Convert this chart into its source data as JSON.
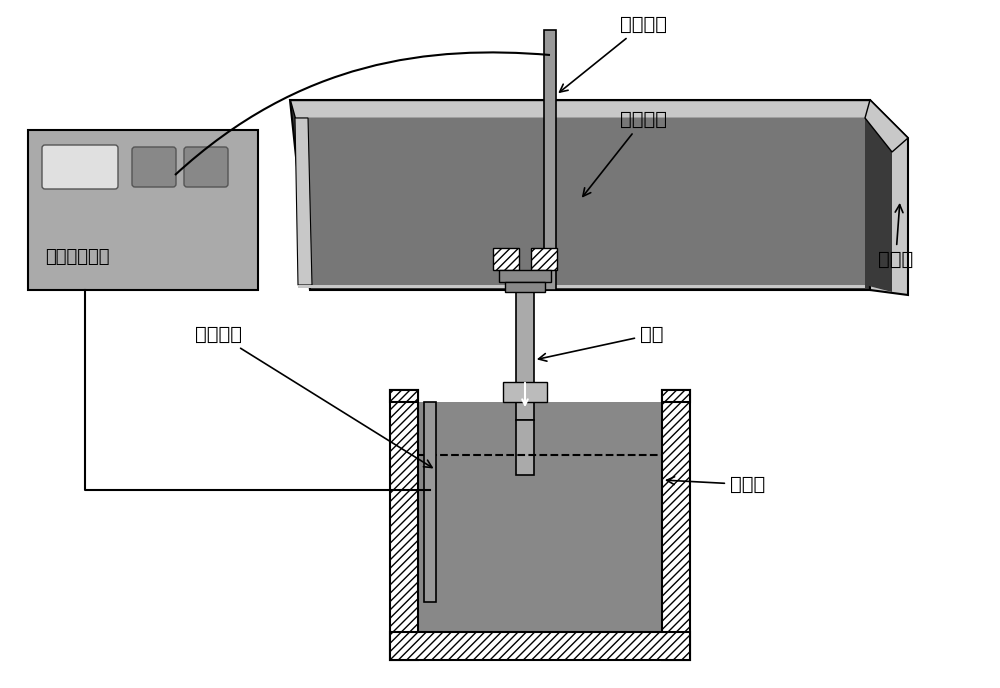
{
  "bg_color": "#ffffff",
  "labels": {
    "pure_iron_electrode_top": "纯铁电极",
    "rare_earth_steel": "稀土钢液",
    "tundish": "中间包",
    "pure_iron_electrode_bottom": "纯铁电极",
    "nozzle": "水口",
    "crystallizer": "结晶器",
    "pulse_power": "脉冲电流电源"
  },
  "colors": {
    "outer_dark": "#3a3a3a",
    "inner_steel": "#777777",
    "wall_light": "#c8c8c8",
    "wall_mid": "#aaaaaa",
    "box_bg": "#aaaaaa",
    "btn_light": "#e0e0e0",
    "btn_dark": "#888888",
    "electrode": "#999999",
    "nozzle_gray": "#aaaaaa",
    "crystallizer_inner": "#888888",
    "hatch_face": "#ffffff",
    "black": "#000000",
    "flange_gray": "#999999"
  }
}
